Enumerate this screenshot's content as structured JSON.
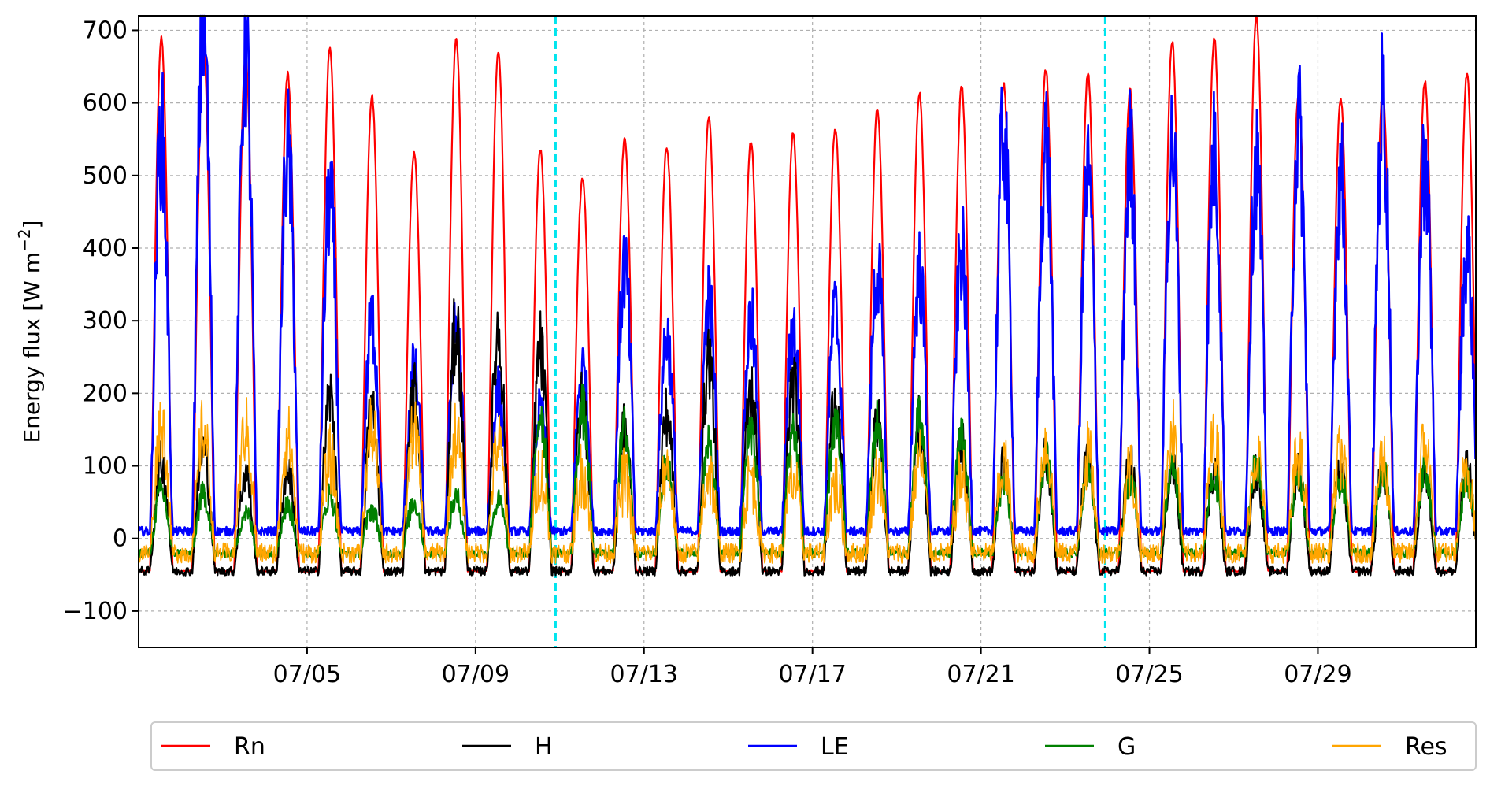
{
  "chart_data": {
    "type": "line",
    "title": "",
    "xlabel": "",
    "ylabel_parts": {
      "main": "Energy flux [W m",
      "sup": "−2",
      "close": "]"
    },
    "ylim": [
      -150,
      720
    ],
    "xlim": [
      1.0,
      32.75
    ],
    "y_ticks": [
      {
        "value": -100,
        "label": "−100"
      },
      {
        "value": 0,
        "label": "0"
      },
      {
        "value": 100,
        "label": "100"
      },
      {
        "value": 200,
        "label": "200"
      },
      {
        "value": 300,
        "label": "300"
      },
      {
        "value": 400,
        "label": "400"
      },
      {
        "value": 500,
        "label": "500"
      },
      {
        "value": 600,
        "label": "600"
      },
      {
        "value": 700,
        "label": "700"
      }
    ],
    "x_ticks": [
      {
        "day": 5,
        "label": "07/05"
      },
      {
        "day": 9,
        "label": "07/09"
      },
      {
        "day": 13,
        "label": "07/13"
      },
      {
        "day": 17,
        "label": "07/17"
      },
      {
        "day": 21,
        "label": "07/21"
      },
      {
        "day": 25,
        "label": "07/25"
      },
      {
        "day": 29,
        "label": "07/29"
      }
    ],
    "grid": true,
    "legend_position": "bottom-outside",
    "vertical_markers": [
      {
        "day": 10.9,
        "color": "#00e5ee",
        "style": "dashed"
      },
      {
        "day": 23.95,
        "color": "#00e5ee",
        "style": "dashed"
      }
    ],
    "series": [
      {
        "name": "Rn",
        "color": "#ff0000",
        "night_value": -45,
        "daily_peaks": [
          688,
          680,
          665,
          640,
          675,
          610,
          530,
          690,
          670,
          537,
          497,
          550,
          540,
          578,
          548,
          558,
          565,
          592,
          615,
          622,
          627,
          646,
          640,
          617,
          685,
          688,
          720,
          612,
          607,
          615,
          630,
          640
        ]
      },
      {
        "name": "H",
        "color": "#000000",
        "night_value": -45,
        "daily_peaks": [
          105,
          125,
          90,
          95,
          195,
          175,
          200,
          290,
          285,
          258,
          190,
          150,
          170,
          250,
          205,
          215,
          195,
          160,
          160,
          130,
          100,
          115,
          110,
          105,
          100,
          95,
          95,
          95,
          90,
          95,
          90,
          95
        ]
      },
      {
        "name": "LE",
        "color": "#0000ff",
        "night_value": 10,
        "daily_peaks": [
          555,
          720,
          675,
          535,
          470,
          300,
          230,
          290,
          200,
          175,
          235,
          375,
          280,
          325,
          300,
          290,
          310,
          375,
          365,
          395,
          565,
          545,
          500,
          530,
          545,
          530,
          520,
          570,
          500,
          600,
          520,
          400
        ]
      },
      {
        "name": "G",
        "color": "#008000",
        "night_value": -20,
        "daily_peaks": [
          65,
          60,
          35,
          45,
          60,
          40,
          50,
          55,
          50,
          175,
          175,
          150,
          100,
          125,
          150,
          150,
          155,
          158,
          160,
          135,
          75,
          110,
          95,
          80,
          95,
          80,
          100,
          85,
          80,
          95,
          95,
          80
        ]
      },
      {
        "name": "Res",
        "color": "#ffa500",
        "night_value": -20,
        "daily_peaks": [
          160,
          150,
          150,
          140,
          110,
          150,
          150,
          145,
          130,
          90,
          90,
          80,
          100,
          90,
          85,
          80,
          75,
          90,
          110,
          85,
          100,
          130,
          115,
          95,
          150,
          135,
          120,
          115,
          115,
          110,
          130,
          100
        ]
      }
    ]
  }
}
